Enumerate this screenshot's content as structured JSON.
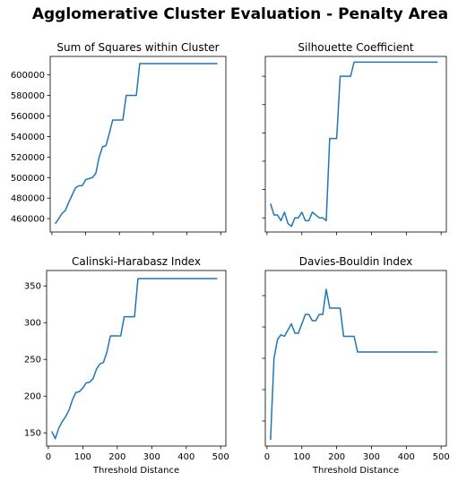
{
  "figure": {
    "title": "Agglomerative Cluster Evaluation - Penalty Area",
    "line_color": "#1f77b4"
  },
  "chart_data": [
    {
      "type": "line",
      "title": "Sum of Squares within Cluster",
      "xlabel": "",
      "ylabel": "",
      "xlim": [
        -5,
        515
      ],
      "ylim": [
        447000,
        618000
      ],
      "xticks": [
        0,
        100,
        200,
        300,
        400,
        500
      ],
      "xtick_labels": [],
      "yticks": [
        460000,
        480000,
        500000,
        520000,
        540000,
        560000,
        580000,
        600000
      ],
      "ytick_labels": [
        "460000",
        "480000",
        "500000",
        "520000",
        "540000",
        "560000",
        "580000",
        "600000"
      ],
      "grid": false,
      "x": [
        10,
        20,
        30,
        40,
        50,
        60,
        70,
        80,
        90,
        100,
        110,
        120,
        130,
        140,
        150,
        160,
        170,
        180,
        190,
        200,
        210,
        220,
        230,
        240,
        250,
        260,
        270,
        280,
        290,
        300,
        310,
        320,
        330,
        340,
        350,
        360,
        370,
        380,
        390,
        400,
        410,
        420,
        430,
        440,
        450,
        460,
        470,
        480,
        490
      ],
      "y": [
        455000,
        460000,
        465000,
        468000,
        476000,
        483000,
        490000,
        492000,
        492000,
        498000,
        499000,
        500000,
        504000,
        520000,
        530000,
        531000,
        543000,
        556000,
        556000,
        556000,
        556000,
        580000,
        580000,
        580000,
        580000,
        611000,
        611000,
        611000,
        611000,
        611000,
        611000,
        611000,
        611000,
        611000,
        611000,
        611000,
        611000,
        611000,
        611000,
        611000,
        611000,
        611000,
        611000,
        611000,
        611000,
        611000,
        611000,
        611000,
        611000
      ]
    },
    {
      "type": "line",
      "title": "Silhouette Coefficient",
      "xlabel": "",
      "ylabel": "",
      "xlim": [
        -5,
        515
      ],
      "ylim": [
        0.4,
        1.02
      ],
      "xticks": [
        0,
        100,
        200,
        300,
        400,
        500
      ],
      "xtick_labels": [],
      "yticks": [
        0.45,
        0.55,
        0.65,
        0.75,
        0.85,
        0.95
      ],
      "ytick_labels": [],
      "grid": false,
      "x": [
        10,
        20,
        30,
        40,
        50,
        60,
        70,
        80,
        90,
        100,
        110,
        120,
        130,
        140,
        150,
        160,
        170,
        180,
        190,
        200,
        210,
        220,
        230,
        240,
        250,
        260,
        270,
        280,
        290,
        300,
        310,
        320,
        330,
        340,
        350,
        360,
        370,
        380,
        390,
        400,
        410,
        420,
        430,
        440,
        450,
        460,
        470,
        480,
        490
      ],
      "y": [
        0.5,
        0.46,
        0.46,
        0.44,
        0.47,
        0.43,
        0.42,
        0.45,
        0.45,
        0.47,
        0.44,
        0.44,
        0.47,
        0.46,
        0.45,
        0.45,
        0.44,
        0.73,
        0.73,
        0.73,
        0.95,
        0.95,
        0.95,
        0.95,
        1.0,
        1.0,
        1.0,
        1.0,
        1.0,
        1.0,
        1.0,
        1.0,
        1.0,
        1.0,
        1.0,
        1.0,
        1.0,
        1.0,
        1.0,
        1.0,
        1.0,
        1.0,
        1.0,
        1.0,
        1.0,
        1.0,
        1.0,
        1.0,
        1.0
      ]
    },
    {
      "type": "line",
      "title": "Calinski-Harabasz Index",
      "xlabel": "Threshold Distance",
      "ylabel": "",
      "xlim": [
        -5,
        515
      ],
      "ylim": [
        132,
        371
      ],
      "xticks": [
        0,
        100,
        200,
        300,
        400,
        500
      ],
      "xtick_labels": [
        "0",
        "100",
        "200",
        "300",
        "400",
        "500"
      ],
      "yticks": [
        150,
        200,
        250,
        300,
        350
      ],
      "ytick_labels": [
        "150",
        "200",
        "250",
        "300",
        "350"
      ],
      "grid": false,
      "x": [
        10,
        20,
        30,
        40,
        50,
        60,
        70,
        80,
        90,
        100,
        110,
        120,
        130,
        140,
        150,
        160,
        170,
        180,
        190,
        200,
        210,
        220,
        230,
        240,
        250,
        260,
        270,
        280,
        290,
        300,
        310,
        320,
        330,
        340,
        350,
        360,
        370,
        380,
        390,
        400,
        410,
        420,
        430,
        440,
        450,
        460,
        470,
        480,
        490
      ],
      "y": [
        152,
        142,
        156,
        165,
        172,
        181,
        195,
        205,
        206,
        211,
        218,
        219,
        224,
        237,
        244,
        246,
        260,
        282,
        282,
        282,
        282,
        308,
        308,
        308,
        308,
        360,
        360,
        360,
        360,
        360,
        360,
        360,
        360,
        360,
        360,
        360,
        360,
        360,
        360,
        360,
        360,
        360,
        360,
        360,
        360,
        360,
        360,
        360,
        360
      ]
    },
    {
      "type": "line",
      "title": "Davies-Bouldin Index",
      "xlabel": "Threshold Distance",
      "ylabel": "",
      "xlim": [
        -5,
        515
      ],
      "ylim": [
        0.32,
        0.88
      ],
      "xticks": [
        0,
        100,
        200,
        300,
        400,
        500
      ],
      "xtick_labels": [
        "0",
        "100",
        "200",
        "300",
        "400",
        "500"
      ],
      "yticks": [
        0.4,
        0.5,
        0.6,
        0.7,
        0.8
      ],
      "ytick_labels": [],
      "grid": false,
      "x": [
        10,
        20,
        30,
        40,
        50,
        60,
        70,
        80,
        90,
        100,
        110,
        120,
        130,
        140,
        150,
        160,
        170,
        180,
        190,
        200,
        210,
        220,
        230,
        240,
        250,
        260,
        270,
        280,
        290,
        300,
        310,
        320,
        330,
        340,
        350,
        360,
        370,
        380,
        390,
        400,
        410,
        420,
        430,
        440,
        450,
        460,
        470,
        480,
        490
      ],
      "y": [
        0.34,
        0.6,
        0.66,
        0.675,
        0.67,
        0.69,
        0.71,
        0.68,
        0.68,
        0.71,
        0.74,
        0.74,
        0.72,
        0.72,
        0.74,
        0.74,
        0.82,
        0.76,
        0.76,
        0.76,
        0.76,
        0.67,
        0.67,
        0.67,
        0.67,
        0.62,
        0.62,
        0.62,
        0.62,
        0.62,
        0.62,
        0.62,
        0.62,
        0.62,
        0.62,
        0.62,
        0.62,
        0.62,
        0.62,
        0.62,
        0.62,
        0.62,
        0.62,
        0.62,
        0.62,
        0.62,
        0.62,
        0.62,
        0.62
      ]
    }
  ]
}
